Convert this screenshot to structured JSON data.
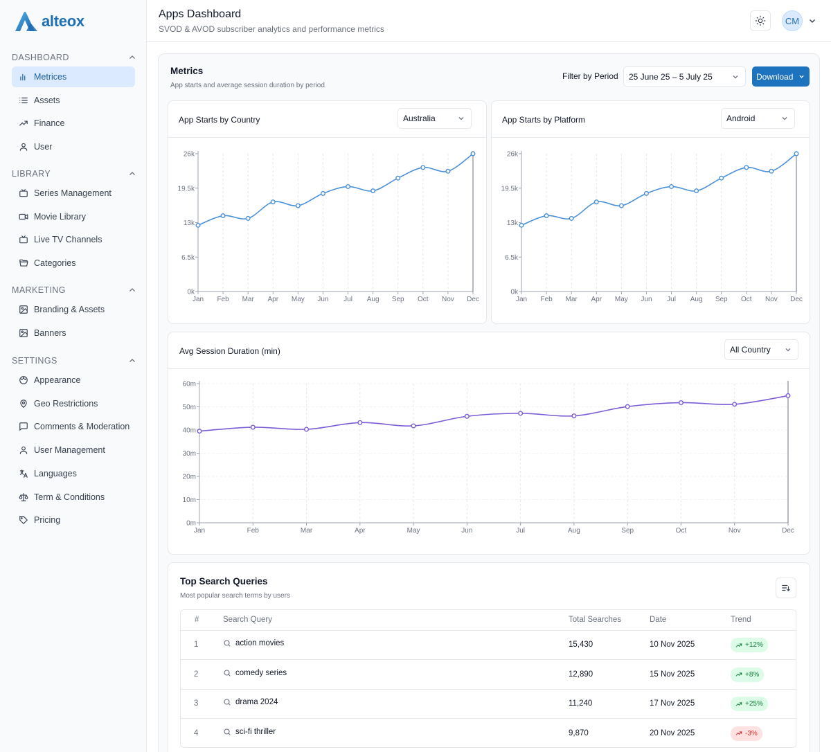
{
  "brand": {
    "name": "alteox",
    "color": "#1e6fb3"
  },
  "sidebar": {
    "sections": [
      {
        "label": "DASHBOARD",
        "items": [
          {
            "label": "Metrices",
            "icon": "bar-chart-icon",
            "active": true
          },
          {
            "label": "Assets",
            "icon": "list-icon"
          },
          {
            "label": "Finance",
            "icon": "trending-up-icon"
          },
          {
            "label": "User",
            "icon": "user-icon"
          }
        ]
      },
      {
        "label": "LIBRARY",
        "items": [
          {
            "label": "Series Management",
            "icon": "tv-icon"
          },
          {
            "label": "Movie Library",
            "icon": "video-icon"
          },
          {
            "label": "Live TV Channels",
            "icon": "tv-icon"
          },
          {
            "label": "Categories",
            "icon": "folder-open-icon"
          }
        ]
      },
      {
        "label": "MARKETING",
        "items": [
          {
            "label": "Branding & Assets",
            "icon": "image-icon"
          },
          {
            "label": "Banners",
            "icon": "image-icon"
          }
        ]
      },
      {
        "label": "SETTINGS",
        "items": [
          {
            "label": "Appearance",
            "icon": "palette-icon"
          },
          {
            "label": "Geo Restrictions",
            "icon": "map-pin-icon"
          },
          {
            "label": "Comments & Moderation",
            "icon": "message-square-icon"
          },
          {
            "label": "User Management",
            "icon": "user-icon"
          },
          {
            "label": "Languages",
            "icon": "languages-icon"
          },
          {
            "label": "Term & Conditions",
            "icon": "scale-icon"
          },
          {
            "label": "Pricing",
            "icon": "tag-icon"
          }
        ]
      }
    ]
  },
  "header": {
    "title": "Apps Dashboard",
    "subtitle": "SVOD & AVOD subscriber analytics and performance metrics",
    "avatar": "CM"
  },
  "metrics": {
    "title": "Metrics",
    "subtitle": "App starts and average session duration by period",
    "filter_label": "Filter by Period",
    "period": "25 June 25 – 5 July 25",
    "download_label": "Download"
  },
  "cards": {
    "country": {
      "title": "App Starts by Country",
      "selected": "Australia"
    },
    "platform": {
      "title": "App Starts by Platform",
      "selected": "Android"
    },
    "session": {
      "title": "Avg Session Duration (min)",
      "selected": "All Country"
    }
  },
  "chart_data": [
    {
      "type": "line",
      "title": "App Starts by Country",
      "x": [
        "Jan",
        "Feb",
        "Mar",
        "Apr",
        "May",
        "Jun",
        "Jul",
        "Aug",
        "Sep",
        "Oct",
        "Nov",
        "Dec"
      ],
      "series": [
        {
          "values": [
            12500,
            14300,
            13800,
            16900,
            16200,
            18500,
            19800,
            19000,
            21400,
            23400,
            22700,
            26000
          ]
        }
      ],
      "y_ticks": [
        "0k",
        "6.5k",
        "13k",
        "19.5k",
        "26k"
      ],
      "ylim": [
        0,
        26000
      ],
      "color": "#4a90d9",
      "grid": "vertical-dashed"
    },
    {
      "type": "line",
      "title": "App Starts by Platform",
      "x": [
        "Jan",
        "Feb",
        "Mar",
        "Apr",
        "May",
        "Jun",
        "Jul",
        "Aug",
        "Sep",
        "Oct",
        "Nov",
        "Dec"
      ],
      "series": [
        {
          "values": [
            12500,
            14300,
            13800,
            16900,
            16200,
            18500,
            19800,
            19000,
            21400,
            23400,
            22700,
            26000
          ]
        }
      ],
      "y_ticks": [
        "0k",
        "6.5k",
        "13k",
        "19.5k",
        "26k"
      ],
      "ylim": [
        0,
        26000
      ],
      "color": "#4a90d9",
      "grid": "vertical-dashed"
    },
    {
      "type": "line",
      "title": "Avg Session Duration (min)",
      "x": [
        "Jan",
        "Feb",
        "Mar",
        "Apr",
        "May",
        "Jun",
        "Jul",
        "Aug",
        "Sep",
        "Oct",
        "Nov",
        "Dec"
      ],
      "series": [
        {
          "values": [
            39.5,
            41.2,
            40.3,
            43.2,
            41.8,
            45.9,
            47.2,
            46.1,
            50.1,
            51.8,
            51.1,
            54.8
          ]
        }
      ],
      "y_ticks": [
        "0m",
        "10m",
        "20m",
        "30m",
        "40m",
        "50m",
        "60m"
      ],
      "ylim": [
        0,
        60
      ],
      "color": "#7c5cd6",
      "grid": "both-dashed"
    }
  ],
  "search": {
    "title": "Top Search Queries",
    "subtitle": "Most popular search terms by users",
    "columns": [
      "#",
      "Search Query",
      "Total Searches",
      "Date",
      "Trend"
    ],
    "rows": [
      {
        "rank": "1",
        "query": "action movies",
        "total": "15,430",
        "date": "10 Nov 2025",
        "trend": "+12%",
        "dir": "up"
      },
      {
        "rank": "2",
        "query": "comedy series",
        "total": "12,890",
        "date": "15 Nov 2025",
        "trend": "+8%",
        "dir": "up"
      },
      {
        "rank": "3",
        "query": "drama 2024",
        "total": "11,240",
        "date": "17 Nov 2025",
        "trend": "+25%",
        "dir": "up"
      },
      {
        "rank": "4",
        "query": "sci-fi thriller",
        "total": "9,870",
        "date": "20 Nov 2025",
        "trend": "-3%",
        "dir": "down"
      }
    ]
  }
}
